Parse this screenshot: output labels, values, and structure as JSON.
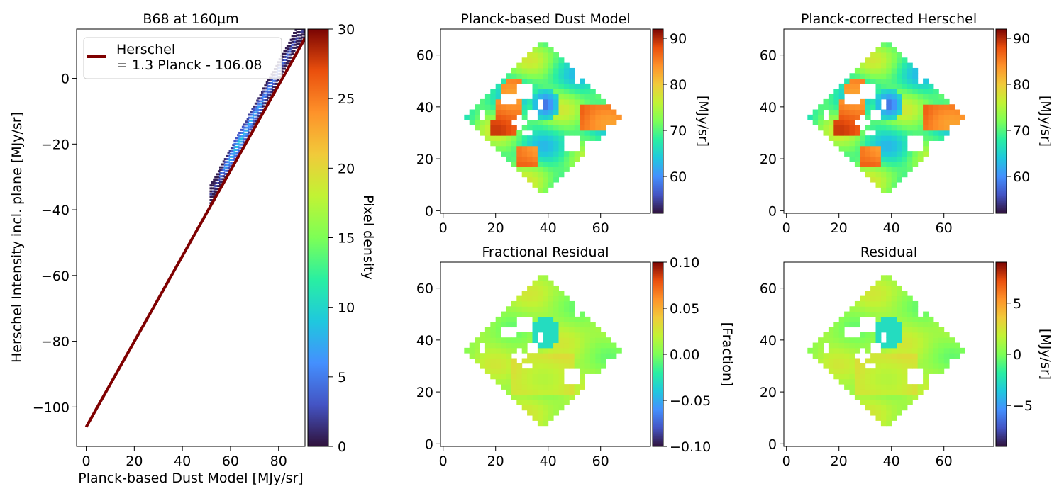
{
  "figure": {
    "colormap": "turbo",
    "background": "#ffffff"
  },
  "chart_data": [
    {
      "id": "scatter",
      "type": "scatter",
      "title": "B68 at 160µm",
      "xlabel": "Planck-based Dust Model [MJy/sr]",
      "ylabel": "Herschel Intensity incl. plane [MJy/sr]",
      "xlim": [
        -4,
        91
      ],
      "ylim": [
        -112,
        15
      ],
      "xticks": [
        0,
        20,
        40,
        60,
        80
      ],
      "yticks": [
        -100,
        -80,
        -60,
        -40,
        -20,
        0
      ],
      "xtick_labels": [
        "0",
        "20",
        "40",
        "60",
        "80"
      ],
      "ytick_labels": [
        "−100",
        "−80",
        "−60",
        "−40",
        "−20",
        "0"
      ],
      "density_points": [
        {
          "x": 52,
          "y": -35.5,
          "d": 2
        },
        {
          "x": 54,
          "y": -33,
          "d": 3
        },
        {
          "x": 56,
          "y": -30,
          "d": 5
        },
        {
          "x": 58,
          "y": -27.5,
          "d": 7
        },
        {
          "x": 60,
          "y": -25,
          "d": 8
        },
        {
          "x": 62,
          "y": -22,
          "d": 9
        },
        {
          "x": 64,
          "y": -19.5,
          "d": 9
        },
        {
          "x": 66,
          "y": -17,
          "d": 8
        },
        {
          "x": 68,
          "y": -14,
          "d": 8
        },
        {
          "x": 70,
          "y": -11.5,
          "d": 7
        },
        {
          "x": 72,
          "y": -9,
          "d": 7
        },
        {
          "x": 74,
          "y": -6,
          "d": 6
        },
        {
          "x": 76,
          "y": -3.5,
          "d": 6
        },
        {
          "x": 78,
          "y": -1,
          "d": 5
        },
        {
          "x": 80,
          "y": 2,
          "d": 5
        },
        {
          "x": 82,
          "y": 4.5,
          "d": 4
        },
        {
          "x": 84,
          "y": 7,
          "d": 4
        },
        {
          "x": 86,
          "y": 10,
          "d": 3
        },
        {
          "x": 88,
          "y": 12,
          "d": 2
        },
        {
          "x": 90,
          "y": 14,
          "d": 2
        }
      ],
      "fit_line": {
        "label": "Herschel\n= 1.3 Planck - 106.08",
        "slope": 1.3,
        "intercept": -106.08,
        "x": [
          0,
          91
        ],
        "color": "#7f0000"
      },
      "legend_position": "upper-left",
      "colorbar": {
        "label": "Pixel density",
        "range": [
          0,
          30
        ],
        "ticks": [
          0,
          5,
          10,
          15,
          20,
          25,
          30
        ],
        "tick_labels": [
          "0",
          "5",
          "10",
          "15",
          "20",
          "25",
          "30"
        ]
      }
    },
    {
      "id": "dust-model",
      "type": "heatmap",
      "title": "Planck-based Dust Model",
      "xlim": [
        -1,
        79
      ],
      "ylim": [
        -1,
        70
      ],
      "xticks": [
        0,
        20,
        40,
        60
      ],
      "yticks": [
        0,
        20,
        40,
        60
      ],
      "xtick_labels": [
        "0",
        "20",
        "40",
        "60"
      ],
      "ytick_labels": [
        "0",
        "20",
        "40",
        "60"
      ],
      "footprint": {
        "center": [
          37,
          35
        ],
        "half_width": 29
      },
      "value_range": [
        52,
        92
      ],
      "colorbar": {
        "label": "[MJy/sr]",
        "range": [
          52,
          92
        ],
        "ticks": [
          60,
          70,
          80,
          90
        ],
        "tick_labels": [
          "60",
          "70",
          "80",
          "90"
        ]
      }
    },
    {
      "id": "corrected-herschel",
      "type": "heatmap",
      "title": "Planck-corrected Herschel",
      "xlim": [
        -1,
        79
      ],
      "ylim": [
        -1,
        70
      ],
      "xticks": [
        0,
        20,
        40,
        60
      ],
      "yticks": [
        0,
        20,
        40,
        60
      ],
      "xtick_labels": [
        "0",
        "20",
        "40",
        "60"
      ],
      "ytick_labels": [
        "0",
        "20",
        "40",
        "60"
      ],
      "footprint": {
        "center": [
          37,
          35
        ],
        "half_width": 29
      },
      "value_range": [
        52,
        92
      ],
      "colorbar": {
        "label": "[MJy/sr]",
        "range": [
          52,
          92
        ],
        "ticks": [
          60,
          70,
          80,
          90
        ],
        "tick_labels": [
          "60",
          "70",
          "80",
          "90"
        ]
      }
    },
    {
      "id": "fractional-residual",
      "type": "heatmap",
      "title": "Fractional Residual",
      "xlim": [
        -1,
        79
      ],
      "ylim": [
        -1,
        70
      ],
      "xticks": [
        0,
        20,
        40,
        60
      ],
      "yticks": [
        0,
        20,
        40,
        60
      ],
      "xtick_labels": [
        "0",
        "20",
        "40",
        "60"
      ],
      "ytick_labels": [
        "0",
        "20",
        "40",
        "60"
      ],
      "footprint": {
        "center": [
          37,
          35
        ],
        "half_width": 29
      },
      "value_range": [
        -0.1,
        0.1
      ],
      "colorbar": {
        "label": "[Fraction]",
        "range": [
          -0.1,
          0.1
        ],
        "ticks": [
          -0.1,
          -0.05,
          0,
          0.05,
          0.1
        ],
        "tick_labels": [
          "−0.10",
          "−0.05",
          "0.00",
          "0.05",
          "0.10"
        ]
      }
    },
    {
      "id": "residual",
      "type": "heatmap",
      "title": "Residual",
      "xlim": [
        -1,
        79
      ],
      "ylim": [
        -1,
        70
      ],
      "xticks": [
        0,
        20,
        40,
        60
      ],
      "yticks": [
        0,
        20,
        40,
        60
      ],
      "xtick_labels": [
        "0",
        "20",
        "40",
        "60"
      ],
      "ytick_labels": [
        "0",
        "20",
        "40",
        "60"
      ],
      "footprint": {
        "center": [
          37,
          35
        ],
        "half_width": 29
      },
      "value_range": [
        -9,
        9
      ],
      "colorbar": {
        "label": "[MJy/sr]",
        "range": [
          -9,
          9
        ],
        "ticks": [
          -5,
          0,
          5
        ],
        "tick_labels": [
          "−5",
          "0",
          "5"
        ]
      }
    }
  ]
}
